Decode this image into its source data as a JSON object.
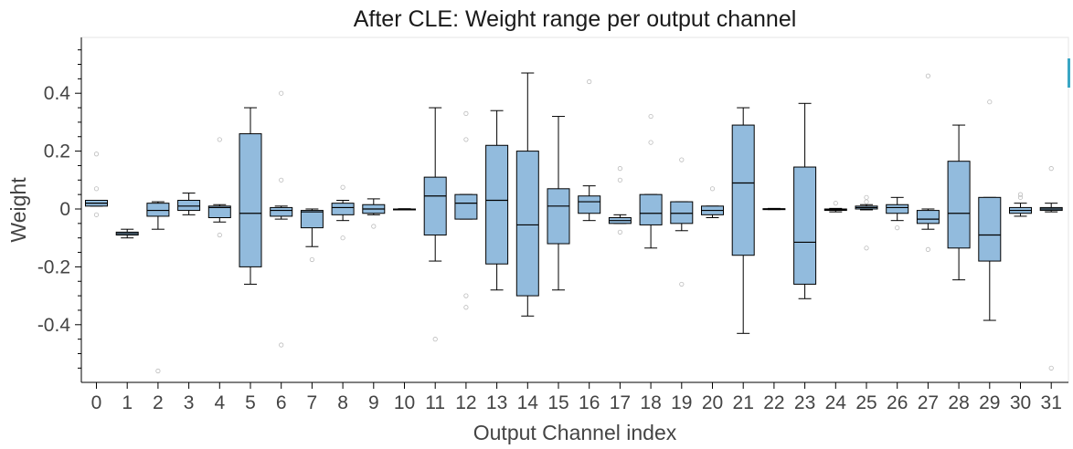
{
  "chart_data": {
    "type": "box",
    "title": "After CLE: Weight range per output channel",
    "xlabel": "Output Channel index",
    "ylabel": "Weight",
    "ylim": [
      -0.6,
      0.6
    ],
    "yticks": [
      -0.4,
      -0.2,
      0,
      0.2,
      0.4
    ],
    "ytick_labels": [
      "-0.4",
      "-0.2",
      "0",
      "0.2",
      "0.4"
    ],
    "box_color": "#92bbdd",
    "outlier_color": "#bcbcbc",
    "accent_color": "#3aa6c4",
    "categories": [
      "0",
      "1",
      "2",
      "3",
      "4",
      "5",
      "6",
      "7",
      "8",
      "9",
      "10",
      "11",
      "12",
      "13",
      "14",
      "15",
      "16",
      "17",
      "18",
      "19",
      "20",
      "21",
      "22",
      "23",
      "24",
      "25",
      "26",
      "27",
      "28",
      "29",
      "30",
      "31"
    ],
    "boxes": [
      {
        "whisker_low": 0.01,
        "q1": 0.01,
        "median": 0.02,
        "q3": 0.03,
        "whisker_high": 0.03,
        "outliers": [
          0.19,
          0.07,
          -0.02
        ]
      },
      {
        "whisker_low": -0.1,
        "q1": -0.09,
        "median": -0.085,
        "q3": -0.08,
        "whisker_high": -0.07,
        "outliers": []
      },
      {
        "whisker_low": -0.07,
        "q1": -0.025,
        "median": -0.005,
        "q3": 0.02,
        "whisker_high": 0.025,
        "outliers": [
          -0.56
        ]
      },
      {
        "whisker_low": -0.02,
        "q1": -0.005,
        "median": 0.01,
        "q3": 0.03,
        "whisker_high": 0.055,
        "outliers": []
      },
      {
        "whisker_low": -0.045,
        "q1": -0.03,
        "median": 0.005,
        "q3": 0.01,
        "whisker_high": 0.015,
        "outliers": [
          0.24,
          -0.09
        ]
      },
      {
        "whisker_low": -0.26,
        "q1": -0.2,
        "median": -0.015,
        "q3": 0.26,
        "whisker_high": 0.35,
        "outliers": []
      },
      {
        "whisker_low": -0.035,
        "q1": -0.025,
        "median": -0.005,
        "q3": 0.005,
        "whisker_high": 0.01,
        "outliers": [
          0.4,
          0.1,
          -0.47
        ]
      },
      {
        "whisker_low": -0.13,
        "q1": -0.065,
        "median": -0.01,
        "q3": -0.005,
        "whisker_high": 0.0,
        "outliers": [
          -0.175
        ]
      },
      {
        "whisker_low": -0.04,
        "q1": -0.02,
        "median": 0.005,
        "q3": 0.02,
        "whisker_high": 0.03,
        "outliers": [
          0.075,
          -0.1
        ]
      },
      {
        "whisker_low": -0.02,
        "q1": -0.015,
        "median": 0.0,
        "q3": 0.015,
        "whisker_high": 0.035,
        "outliers": [
          -0.06
        ]
      },
      {
        "whisker_low": -0.003,
        "q1": -0.002,
        "median": -0.001,
        "q3": 0.0,
        "whisker_high": 0.001,
        "outliers": []
      },
      {
        "whisker_low": -0.18,
        "q1": -0.09,
        "median": 0.045,
        "q3": 0.11,
        "whisker_high": 0.35,
        "outliers": [
          -0.45
        ]
      },
      {
        "whisker_low": -0.035,
        "q1": -0.035,
        "median": 0.02,
        "q3": 0.05,
        "whisker_high": 0.05,
        "outliers": [
          0.33,
          0.24,
          -0.3,
          -0.34
        ]
      },
      {
        "whisker_low": -0.28,
        "q1": -0.19,
        "median": 0.03,
        "q3": 0.22,
        "whisker_high": 0.34,
        "outliers": []
      },
      {
        "whisker_low": -0.37,
        "q1": -0.3,
        "median": -0.055,
        "q3": 0.2,
        "whisker_high": 0.47,
        "outliers": []
      },
      {
        "whisker_low": -0.28,
        "q1": -0.12,
        "median": 0.01,
        "q3": 0.07,
        "whisker_high": 0.32,
        "outliers": []
      },
      {
        "whisker_low": -0.04,
        "q1": -0.015,
        "median": 0.025,
        "q3": 0.045,
        "whisker_high": 0.08,
        "outliers": [
          0.44
        ]
      },
      {
        "whisker_low": -0.05,
        "q1": -0.05,
        "median": -0.04,
        "q3": -0.03,
        "whisker_high": -0.02,
        "outliers": [
          0.14,
          0.1,
          -0.08
        ]
      },
      {
        "whisker_low": -0.135,
        "q1": -0.055,
        "median": -0.015,
        "q3": 0.05,
        "whisker_high": 0.05,
        "outliers": [
          0.32,
          0.23
        ]
      },
      {
        "whisker_low": -0.075,
        "q1": -0.05,
        "median": -0.015,
        "q3": 0.025,
        "whisker_high": 0.025,
        "outliers": [
          0.17,
          -0.26
        ]
      },
      {
        "whisker_low": -0.03,
        "q1": -0.02,
        "median": -0.005,
        "q3": 0.01,
        "whisker_high": 0.01,
        "outliers": [
          0.07
        ]
      },
      {
        "whisker_low": -0.43,
        "q1": -0.16,
        "median": 0.09,
        "q3": 0.29,
        "whisker_high": 0.35,
        "outliers": []
      },
      {
        "whisker_low": -0.002,
        "q1": -0.001,
        "median": 0.0,
        "q3": 0.001,
        "whisker_high": 0.002,
        "outliers": []
      },
      {
        "whisker_low": -0.31,
        "q1": -0.26,
        "median": -0.115,
        "q3": 0.145,
        "whisker_high": 0.365,
        "outliers": []
      },
      {
        "whisker_low": -0.01,
        "q1": -0.005,
        "median": -0.003,
        "q3": 0.0,
        "whisker_high": 0.002,
        "outliers": [
          0.02
        ]
      },
      {
        "whisker_low": -0.003,
        "q1": 0.0,
        "median": 0.005,
        "q3": 0.01,
        "whisker_high": 0.015,
        "outliers": [
          0.04,
          0.025,
          -0.135
        ]
      },
      {
        "whisker_low": -0.04,
        "q1": -0.015,
        "median": 0.005,
        "q3": 0.015,
        "whisker_high": 0.04,
        "outliers": [
          -0.065
        ]
      },
      {
        "whisker_low": -0.07,
        "q1": -0.05,
        "median": -0.035,
        "q3": -0.005,
        "whisker_high": 0.0,
        "outliers": [
          0.46,
          -0.14
        ]
      },
      {
        "whisker_low": -0.245,
        "q1": -0.135,
        "median": -0.015,
        "q3": 0.165,
        "whisker_high": 0.29,
        "outliers": []
      },
      {
        "whisker_low": -0.385,
        "q1": -0.18,
        "median": -0.09,
        "q3": 0.04,
        "whisker_high": 0.04,
        "outliers": [
          0.37
        ]
      },
      {
        "whisker_low": -0.025,
        "q1": -0.015,
        "median": -0.005,
        "q3": 0.005,
        "whisker_high": 0.02,
        "outliers": [
          0.05,
          0.04
        ]
      },
      {
        "whisker_low": -0.01,
        "q1": -0.005,
        "median": 0.0,
        "q3": 0.005,
        "whisker_high": 0.02,
        "outliers": [
          0.14,
          -0.55
        ]
      }
    ]
  }
}
